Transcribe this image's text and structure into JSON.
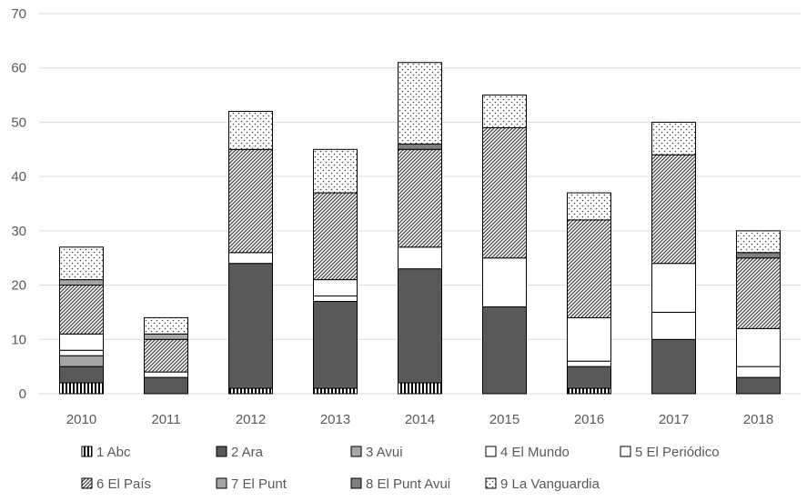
{
  "chart_data": {
    "type": "bar",
    "stacked": true,
    "title": "",
    "xlabel": "",
    "ylabel": "",
    "ylim": [
      0,
      70
    ],
    "y_ticks": [
      0,
      10,
      20,
      30,
      40,
      50,
      60,
      70
    ],
    "grid": true,
    "legend_position": "bottom",
    "categories": [
      "2010",
      "2011",
      "2012",
      "2013",
      "2014",
      "2015",
      "2016",
      "2017",
      "2018"
    ],
    "series": [
      {
        "name": "1 Abc",
        "pattern": "vertical-lines",
        "values": [
          2,
          0,
          1,
          1,
          2,
          0,
          1,
          0,
          0
        ]
      },
      {
        "name": "2 Ara",
        "color": "#595959",
        "values": [
          3,
          3,
          23,
          16,
          21,
          16,
          4,
          10,
          3
        ]
      },
      {
        "name": "3 Avui",
        "color": "#a6a6a6",
        "values": [
          2,
          0,
          0,
          0,
          0,
          0,
          0,
          0,
          0
        ]
      },
      {
        "name": "4 El Mundo",
        "color": "#ffffff",
        "values": [
          1,
          0,
          0,
          1,
          0,
          0,
          1,
          5,
          2
        ]
      },
      {
        "name": "5 El Periódico",
        "color": "#ffffff",
        "values": [
          3,
          1,
          2,
          3,
          4,
          9,
          8,
          9,
          7
        ]
      },
      {
        "name": "6 El País",
        "pattern": "diagonal-lines",
        "values": [
          9,
          6,
          19,
          16,
          18,
          24,
          18,
          20,
          13
        ]
      },
      {
        "name": "7 El Punt",
        "color": "#a6a6a6",
        "values": [
          1,
          1,
          0,
          0,
          0,
          0,
          0,
          0,
          0
        ]
      },
      {
        "name": "8 El Punt Avui",
        "color": "#7f7f7f",
        "values": [
          0,
          0,
          0,
          0,
          1,
          0,
          0,
          0,
          1
        ]
      },
      {
        "name": "9 La Vanguardia",
        "pattern": "dots",
        "values": [
          6,
          3,
          7,
          8,
          15,
          6,
          5,
          6,
          4
        ]
      }
    ]
  }
}
